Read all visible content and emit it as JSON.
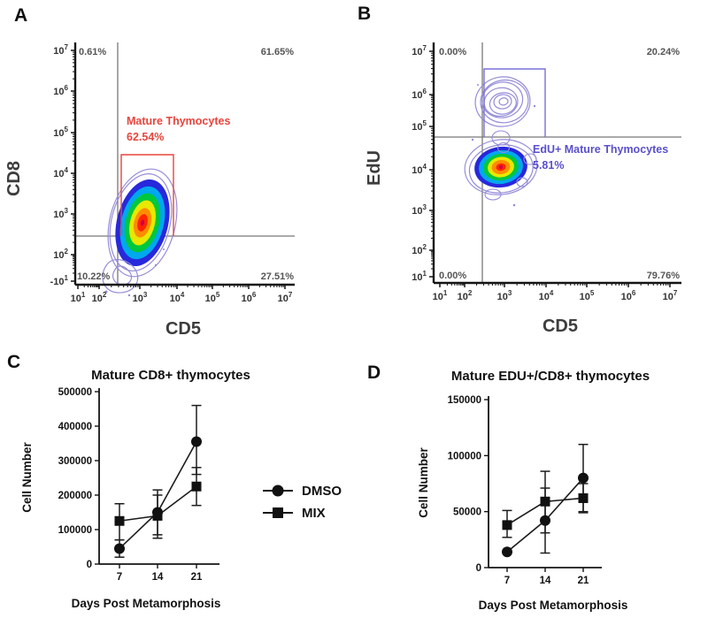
{
  "panel_labels": {
    "A": "A",
    "B": "B",
    "C": "C",
    "D": "D"
  },
  "colors": {
    "gate_red": "#e8453c",
    "gate_blue": "#7a70d8",
    "gate_text_blue": "#5a50cc",
    "quadrant_line": "#787878",
    "axis": "#141414",
    "contour_outline": "#958cd8",
    "core_dot": "#cc0050",
    "jet": [
      "#2828dc",
      "#00a8ee",
      "#00c83c",
      "#e8e800",
      "#ff8c00",
      "#ff2400"
    ]
  },
  "legend": {
    "items": [
      {
        "label": "DMSO",
        "marker": "circle"
      },
      {
        "label": "MIX",
        "marker": "square"
      }
    ]
  },
  "chart_data": [
    {
      "id": "A",
      "type": "contour",
      "title": "",
      "xlabel": "CD5",
      "ylabel": "CD8",
      "x_ticks": [
        "10^1",
        "10^2",
        "10^3",
        "10^4",
        "10^5",
        "10^6",
        "10^7"
      ],
      "y_ticks": [
        "10^7",
        "10^6",
        "10^5",
        "10^4",
        "10^3",
        "10^2",
        "-10^1"
      ],
      "quadrant_stats": {
        "upper_left": "0.61%",
        "upper_right": "61.65%",
        "lower_left": "10.22%",
        "lower_right": "27.51%"
      },
      "gate": {
        "label": "Mature Thymocytes",
        "percent": "62.54%"
      },
      "population_note": "single dense CD5+ contour population with rainbow density core straddling the CD8 threshold"
    },
    {
      "id": "B",
      "type": "contour",
      "title": "",
      "xlabel": "CD5",
      "ylabel": "EdU",
      "x_ticks": [
        "10^1",
        "10^2",
        "10^3",
        "10^4",
        "10^5",
        "10^6",
        "10^7"
      ],
      "y_ticks": [
        "10^7",
        "10^6",
        "10^5",
        "10^4",
        "10^3",
        "10^2",
        "10^1"
      ],
      "quadrant_stats": {
        "upper_left": "0.00%",
        "upper_right": "20.24%",
        "lower_left": "0.00%",
        "lower_right": "79.76%"
      },
      "gate": {
        "label": "EdU+ Mature Thymocytes",
        "percent": "5.81%"
      },
      "population_note": "EdU+ contour cluster inside gate above threshold; dense EdU- cluster with rainbow core below threshold"
    },
    {
      "id": "C",
      "type": "line",
      "title": "Mature CD8+ thymocytes",
      "xlabel": "Days Post Metamorphosis",
      "ylabel": "Cell Number",
      "categories": [
        "7",
        "14",
        "21"
      ],
      "ylim": [
        0,
        500000
      ],
      "yticks": [
        0,
        100000,
        200000,
        300000,
        400000,
        500000
      ],
      "legend_position": "right of plot",
      "series": [
        {
          "name": "DMSO",
          "marker": "circle",
          "values": [
            45000,
            150000,
            355000
          ],
          "err_low": [
            20000,
            85000,
            260000
          ],
          "err_high": [
            70000,
            215000,
            460000
          ]
        },
        {
          "name": "MIX",
          "marker": "square",
          "values": [
            125000,
            140000,
            225000
          ],
          "err_low": [
            70000,
            75000,
            170000
          ],
          "err_high": [
            175000,
            200000,
            280000
          ]
        }
      ]
    },
    {
      "id": "D",
      "type": "line",
      "title": "Mature EDU+/CD8+ thymocytes",
      "xlabel": "Days Post Metamorphosis",
      "ylabel": "Cell Number",
      "categories": [
        "7",
        "14",
        "21"
      ],
      "ylim": [
        0,
        150000
      ],
      "yticks": [
        0,
        50000,
        100000,
        150000
      ],
      "series": [
        {
          "name": "DMSO",
          "marker": "circle",
          "values": [
            14000,
            42000,
            80000
          ],
          "err_low": [
            14000,
            13000,
            50000
          ],
          "err_high": [
            14000,
            71000,
            110000
          ]
        },
        {
          "name": "MIX",
          "marker": "square",
          "values": [
            38000,
            59000,
            62000
          ],
          "err_low": [
            27000,
            31000,
            49000
          ],
          "err_high": [
            51000,
            86000,
            75000
          ]
        }
      ]
    }
  ]
}
